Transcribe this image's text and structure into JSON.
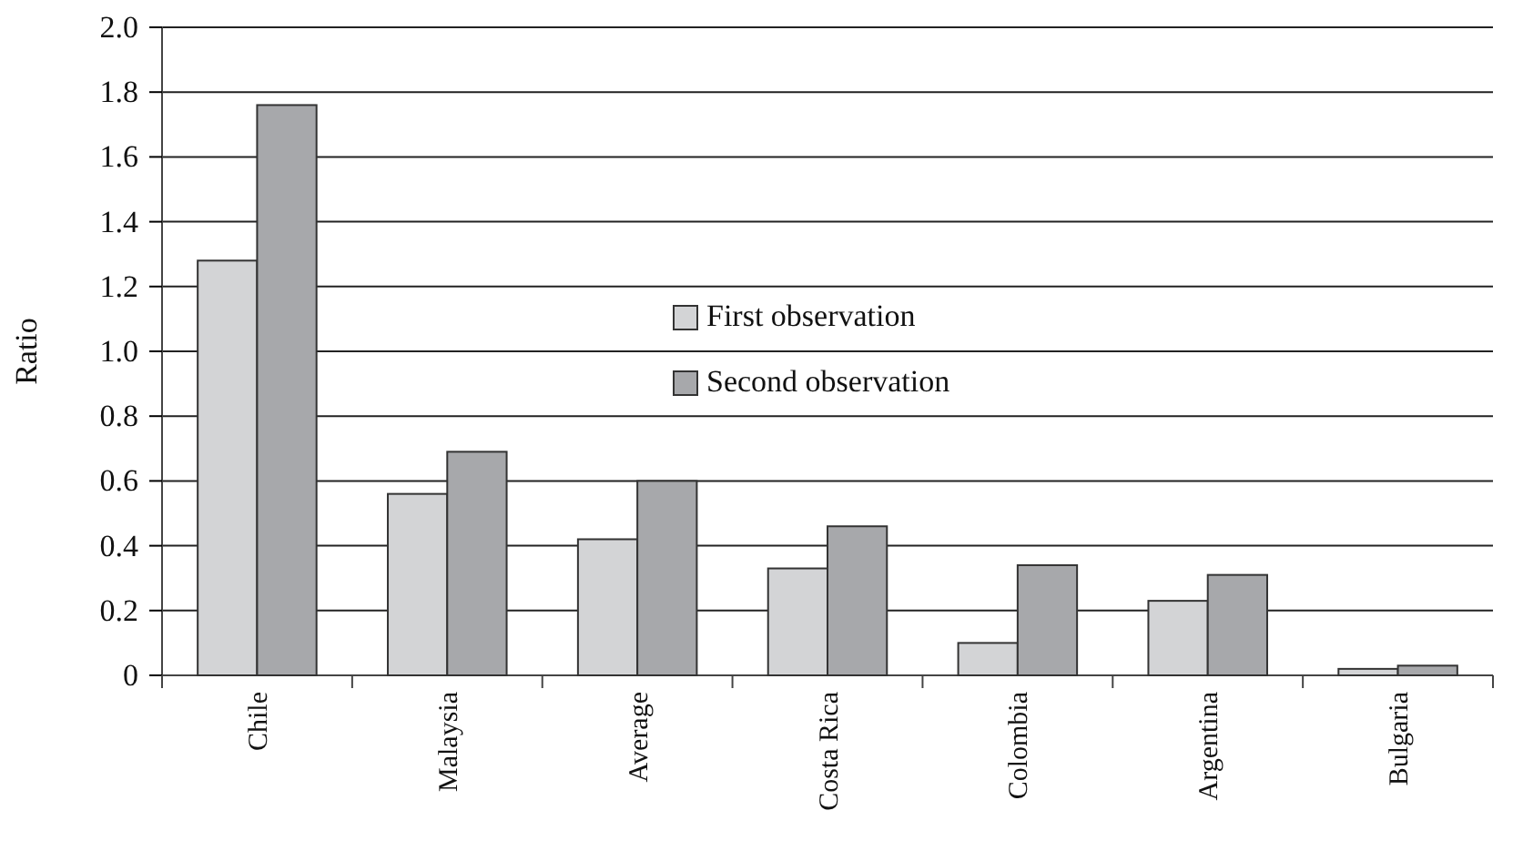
{
  "chart_data": {
    "type": "bar",
    "ylabel": "Ratio",
    "categories": [
      "Chile",
      "Malaysia",
      "Average",
      "Costa Rica",
      "Colombia",
      "Argentina",
      "Bulgaria"
    ],
    "series": [
      {
        "name": "First observation",
        "color": "#d3d4d6",
        "values": [
          1.28,
          0.56,
          0.42,
          0.33,
          0.1,
          0.23,
          0.02
        ]
      },
      {
        "name": "Second observation",
        "color": "#a7a8ab",
        "values": [
          1.76,
          0.69,
          0.6,
          0.46,
          0.34,
          0.31,
          0.03
        ]
      }
    ],
    "ylim": [
      0,
      2
    ],
    "yticks": [
      {
        "value": 0,
        "label": "0"
      },
      {
        "value": 0.2,
        "label": "0.2"
      },
      {
        "value": 0.4,
        "label": "0.4"
      },
      {
        "value": 0.6,
        "label": "0.6"
      },
      {
        "value": 0.8,
        "label": "0.8"
      },
      {
        "value": 1,
        "label": "1.0"
      },
      {
        "value": 1.2,
        "label": "1.2"
      },
      {
        "value": 1.4,
        "label": "1.4"
      },
      {
        "value": 1.6,
        "label": "1.6"
      },
      {
        "value": 1.8,
        "label": "1.8"
      },
      {
        "value": 2,
        "label": "2.0"
      }
    ],
    "grid": "y",
    "legend": "center"
  }
}
